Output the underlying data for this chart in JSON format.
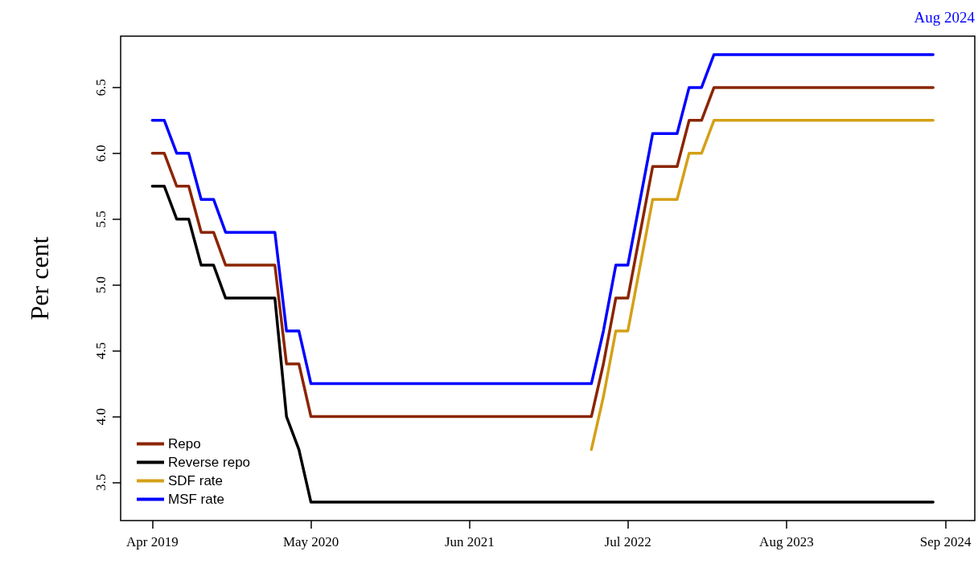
{
  "chart_data": {
    "type": "line",
    "ylabel": "Per cent",
    "annotations": [
      "Aug 2024"
    ],
    "x": [
      "2019-04",
      "2019-05",
      "2019-06",
      "2019-07",
      "2019-08",
      "2019-09",
      "2019-10",
      "2019-11",
      "2019-12",
      "2020-01",
      "2020-02",
      "2020-03",
      "2020-04",
      "2020-05",
      "2020-06",
      "2020-07",
      "2020-08",
      "2020-09",
      "2020-10",
      "2020-11",
      "2020-12",
      "2021-01",
      "2021-02",
      "2021-03",
      "2021-04",
      "2021-05",
      "2021-06",
      "2021-07",
      "2021-08",
      "2021-09",
      "2021-10",
      "2021-11",
      "2021-12",
      "2022-01",
      "2022-02",
      "2022-03",
      "2022-04",
      "2022-05",
      "2022-06",
      "2022-07",
      "2022-08",
      "2022-09",
      "2022-10",
      "2022-11",
      "2022-12",
      "2023-01",
      "2023-02",
      "2023-03",
      "2023-04",
      "2023-05",
      "2023-06",
      "2023-07",
      "2023-08",
      "2023-09",
      "2023-10",
      "2023-11",
      "2023-12",
      "2024-01",
      "2024-02",
      "2024-03",
      "2024-04",
      "2024-05",
      "2024-06",
      "2024-07",
      "2024-08"
    ],
    "series": [
      {
        "name": "Repo",
        "color": "#8b2500",
        "values": [
          6.0,
          6.0,
          5.75,
          5.75,
          5.4,
          5.4,
          5.15,
          5.15,
          5.15,
          5.15,
          5.15,
          4.4,
          4.4,
          4.0,
          4.0,
          4.0,
          4.0,
          4.0,
          4.0,
          4.0,
          4.0,
          4.0,
          4.0,
          4.0,
          4.0,
          4.0,
          4.0,
          4.0,
          4.0,
          4.0,
          4.0,
          4.0,
          4.0,
          4.0,
          4.0,
          4.0,
          4.0,
          4.4,
          4.9,
          4.9,
          5.4,
          5.9,
          5.9,
          5.9,
          6.25,
          6.25,
          6.5,
          6.5,
          6.5,
          6.5,
          6.5,
          6.5,
          6.5,
          6.5,
          6.5,
          6.5,
          6.5,
          6.5,
          6.5,
          6.5,
          6.5,
          6.5,
          6.5,
          6.5,
          6.5
        ]
      },
      {
        "name": "Reverse repo",
        "color": "#000000",
        "values": [
          5.75,
          5.75,
          5.5,
          5.5,
          5.15,
          5.15,
          4.9,
          4.9,
          4.9,
          4.9,
          4.9,
          4.0,
          3.75,
          3.35,
          3.35,
          3.35,
          3.35,
          3.35,
          3.35,
          3.35,
          3.35,
          3.35,
          3.35,
          3.35,
          3.35,
          3.35,
          3.35,
          3.35,
          3.35,
          3.35,
          3.35,
          3.35,
          3.35,
          3.35,
          3.35,
          3.35,
          3.35,
          3.35,
          3.35,
          3.35,
          3.35,
          3.35,
          3.35,
          3.35,
          3.35,
          3.35,
          3.35,
          3.35,
          3.35,
          3.35,
          3.35,
          3.35,
          3.35,
          3.35,
          3.35,
          3.35,
          3.35,
          3.35,
          3.35,
          3.35,
          3.35,
          3.35,
          3.35,
          3.35,
          3.35
        ]
      },
      {
        "name": "SDF rate",
        "color": "#d4a017",
        "values": [
          null,
          null,
          null,
          null,
          null,
          null,
          null,
          null,
          null,
          null,
          null,
          null,
          null,
          null,
          null,
          null,
          null,
          null,
          null,
          null,
          null,
          null,
          null,
          null,
          null,
          null,
          null,
          null,
          null,
          null,
          null,
          null,
          null,
          null,
          null,
          null,
          3.75,
          4.15,
          4.65,
          4.65,
          5.15,
          5.65,
          5.65,
          5.65,
          6.0,
          6.0,
          6.25,
          6.25,
          6.25,
          6.25,
          6.25,
          6.25,
          6.25,
          6.25,
          6.25,
          6.25,
          6.25,
          6.25,
          6.25,
          6.25,
          6.25,
          6.25,
          6.25,
          6.25,
          6.25
        ]
      },
      {
        "name": "MSF rate",
        "color": "#0000ff",
        "values": [
          6.25,
          6.25,
          6.0,
          6.0,
          5.65,
          5.65,
          5.4,
          5.4,
          5.4,
          5.4,
          5.4,
          4.65,
          4.65,
          4.25,
          4.25,
          4.25,
          4.25,
          4.25,
          4.25,
          4.25,
          4.25,
          4.25,
          4.25,
          4.25,
          4.25,
          4.25,
          4.25,
          4.25,
          4.25,
          4.25,
          4.25,
          4.25,
          4.25,
          4.25,
          4.25,
          4.25,
          4.25,
          4.65,
          5.15,
          5.15,
          5.65,
          6.15,
          6.15,
          6.15,
          6.5,
          6.5,
          6.75,
          6.75,
          6.75,
          6.75,
          6.75,
          6.75,
          6.75,
          6.75,
          6.75,
          6.75,
          6.75,
          6.75,
          6.75,
          6.75,
          6.75,
          6.75,
          6.75,
          6.75,
          6.75
        ]
      }
    ],
    "xlim": [
      "2019-01-12",
      "2024-11-13"
    ],
    "xticks": [
      {
        "value": "2019-04",
        "label": "Apr 2019"
      },
      {
        "value": "2020-05",
        "label": "May 2020"
      },
      {
        "value": "2021-06",
        "label": "Jun 2021"
      },
      {
        "value": "2022-07",
        "label": "Jul 2022"
      },
      {
        "value": "2023-08",
        "label": "Aug 2023"
      },
      {
        "value": "2024-09",
        "label": "Sep 2024"
      }
    ],
    "ylim": [
      3.21,
      6.89
    ],
    "yticks": [
      3.5,
      {
        "value": 4,
        "label": "4.0"
      },
      4.5,
      {
        "value": 5,
        "label": "5.0"
      },
      5.5,
      {
        "value": 6,
        "label": "6.0"
      },
      6.5
    ],
    "grid": false,
    "legend": "bottom left",
    "marker": "none",
    "line_style": "solid"
  }
}
